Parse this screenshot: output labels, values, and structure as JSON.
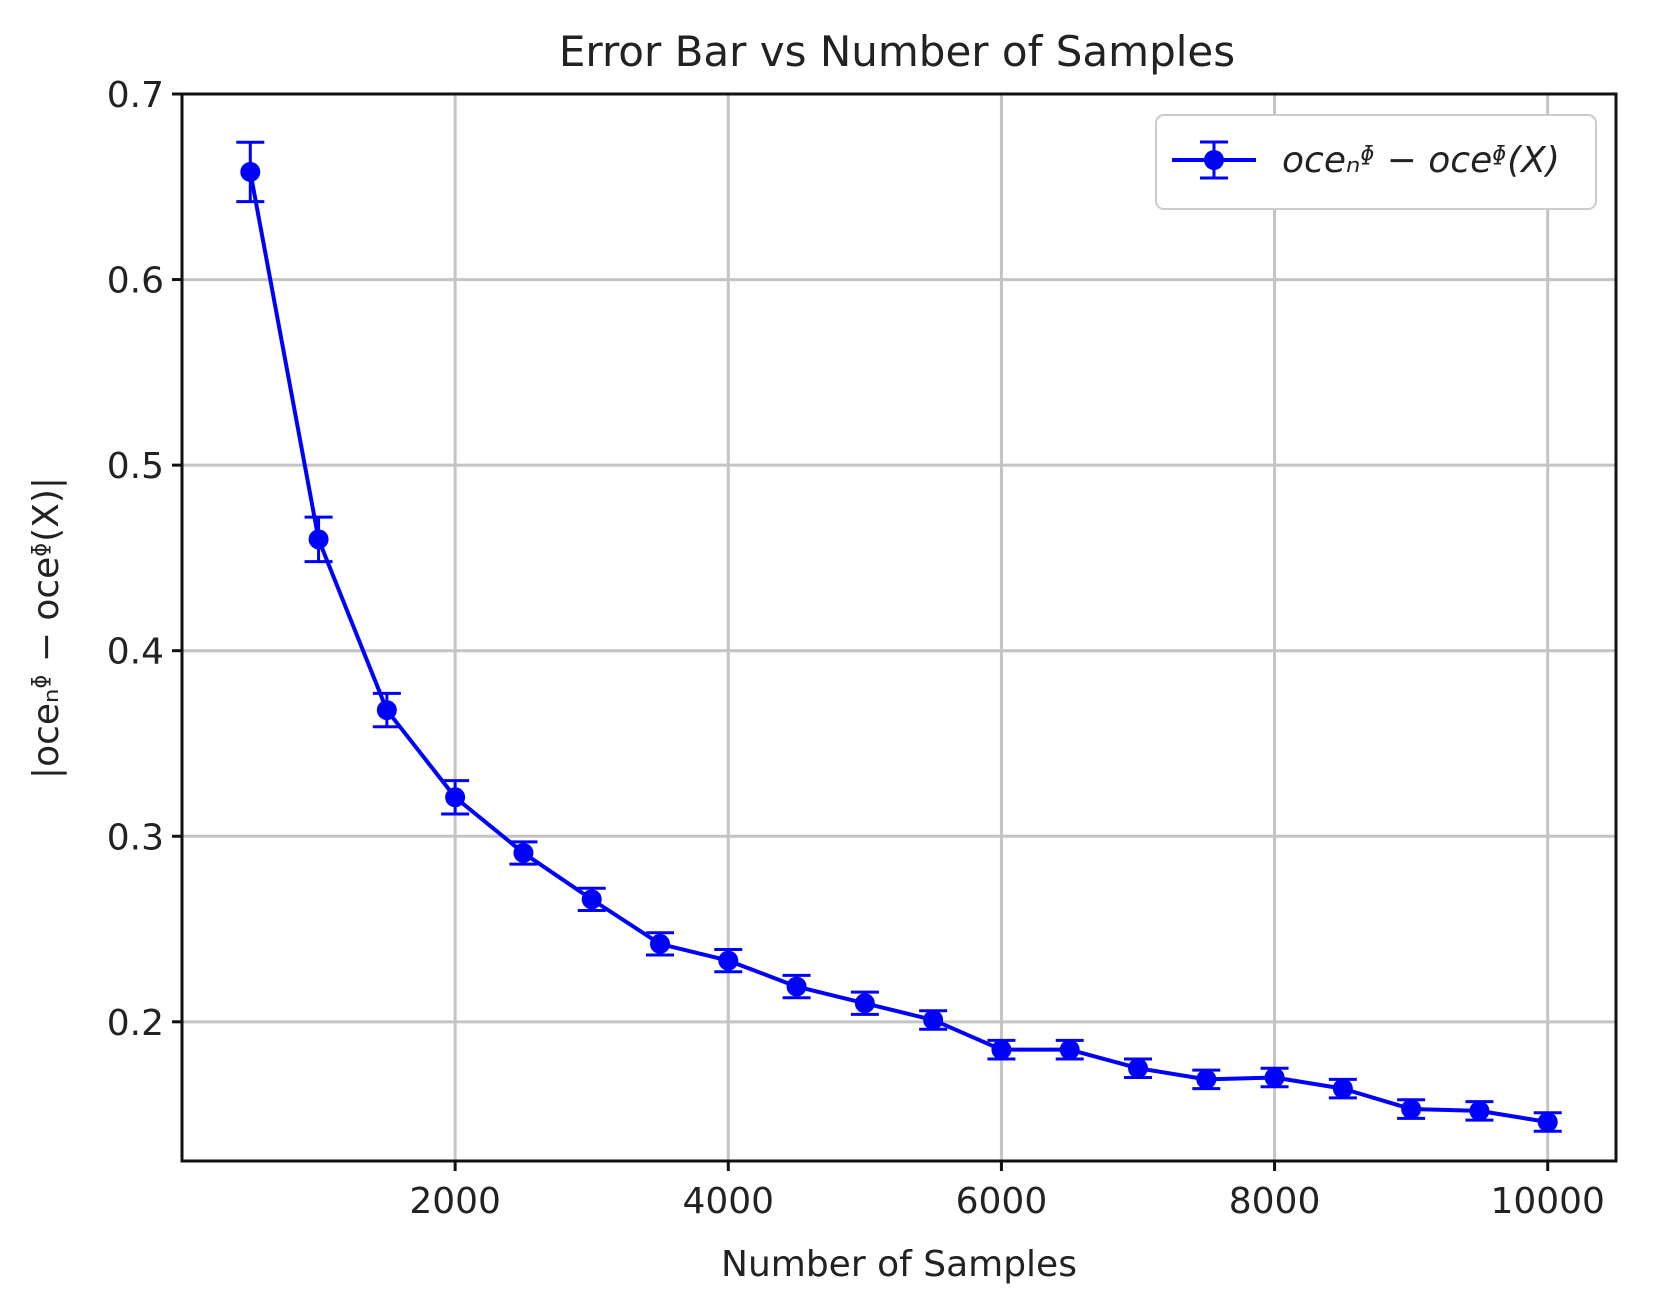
{
  "chart_data": {
    "type": "line",
    "title": "Error Bar vs Number of Samples",
    "xlabel": "Number of Samples",
    "ylabel": "|oceₙᶲ − oceᶲ(X)|",
    "xlim": [
      0,
      10500
    ],
    "ylim": [
      0.125,
      0.7
    ],
    "xticks": [
      2000,
      4000,
      6000,
      8000,
      10000
    ],
    "yticks": [
      0.2,
      0.3,
      0.4,
      0.5,
      0.6,
      0.7
    ],
    "grid": true,
    "legend_position": "top-right",
    "series": [
      {
        "name": "oceₙᶲ − oceᶲ(X)",
        "color": "#0000ff",
        "marker": "circle",
        "x": [
          500,
          1000,
          1500,
          2000,
          2500,
          3000,
          3500,
          4000,
          4500,
          5000,
          5500,
          6000,
          6500,
          7000,
          7500,
          8000,
          8500,
          9000,
          9500,
          10000
        ],
        "y": [
          0.658,
          0.46,
          0.368,
          0.321,
          0.291,
          0.266,
          0.242,
          0.233,
          0.219,
          0.21,
          0.201,
          0.185,
          0.185,
          0.175,
          0.169,
          0.17,
          0.164,
          0.153,
          0.152,
          0.146
        ],
        "err": [
          0.016,
          0.012,
          0.009,
          0.009,
          0.006,
          0.006,
          0.006,
          0.006,
          0.006,
          0.006,
          0.005,
          0.005,
          0.005,
          0.005,
          0.005,
          0.005,
          0.005,
          0.005,
          0.005,
          0.005
        ]
      }
    ]
  }
}
